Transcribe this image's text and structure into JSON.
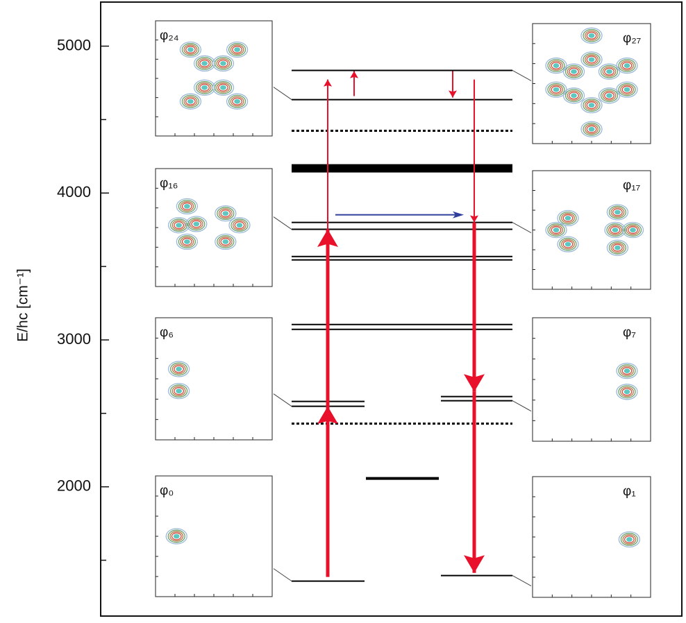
{
  "chart_data": {
    "type": "levels",
    "y_label": "E/hc [cm⁻¹]",
    "ylim": [
      1120,
      5300
    ],
    "yticks": [
      2000,
      3000,
      4000,
      5000
    ],
    "yminorticks": [
      1500,
      2500,
      3500,
      4500
    ],
    "levels": [
      {
        "value": 1358,
        "span": "left",
        "style": "solid"
      },
      {
        "value": 1396,
        "span": "right",
        "style": "solid"
      },
      {
        "value": 2057,
        "span": "middle",
        "style": "thick"
      },
      {
        "value": 2430,
        "span": "full",
        "style": "dotted"
      },
      {
        "value": 2548,
        "span": "left",
        "style": "solid"
      },
      {
        "value": 2581,
        "span": "left",
        "style": "solid"
      },
      {
        "value": 2586,
        "span": "right",
        "style": "solid"
      },
      {
        "value": 2614,
        "span": "right",
        "style": "solid"
      },
      {
        "value": 3072,
        "span": "full",
        "style": "solid"
      },
      {
        "value": 3105,
        "span": "full",
        "style": "solid"
      },
      {
        "value": 3545,
        "span": "full",
        "style": "solid"
      },
      {
        "value": 3568,
        "span": "full",
        "style": "solid"
      },
      {
        "value": 3753,
        "span": "full",
        "style": "solid"
      },
      {
        "value": 3800,
        "span": "full",
        "style": "solid"
      },
      {
        "value": 4168,
        "span": "full",
        "style": "thick"
      },
      {
        "value": 4424,
        "span": "full",
        "style": "dotted"
      },
      {
        "value": 4636,
        "span": "full",
        "style": "solid"
      },
      {
        "value": 4835,
        "span": "full",
        "style": "solid"
      }
    ],
    "arrows": [
      {
        "from": 1386,
        "to": 4773,
        "heads": [
          2548,
          3753
        ],
        "color": "#e8102a"
      },
      {
        "from": 4660,
        "to": 4830,
        "heads": [],
        "color": "#e8102a"
      },
      {
        "from": 4830,
        "to": 4650,
        "heads": [],
        "color": "#e8102a"
      },
      {
        "from": 4773,
        "to": 1414,
        "heads": [
          3800,
          2647
        ],
        "color": "#e8102a"
      },
      {
        "at": 3852,
        "direction": "right",
        "color": "#2f3d9c"
      }
    ],
    "panels": [
      {
        "label": "φ₂₄",
        "side": "left"
      },
      {
        "label": "φ₁₆",
        "side": "left"
      },
      {
        "label": "φ₆",
        "side": "left"
      },
      {
        "label": "φ₀",
        "side": "left"
      },
      {
        "label": "φ₂₇",
        "side": "right"
      },
      {
        "label": "φ₁₇",
        "side": "right"
      },
      {
        "label": "φ₇",
        "side": "right"
      },
      {
        "label": "φ₁",
        "side": "right"
      }
    ]
  }
}
